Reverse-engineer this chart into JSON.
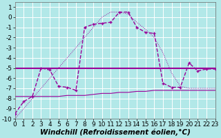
{
  "xlabel": "Windchill (Refroidissement éolien,°C)",
  "x_hours": [
    0,
    1,
    2,
    3,
    4,
    5,
    6,
    7,
    8,
    9,
    10,
    11,
    12,
    13,
    14,
    15,
    16,
    17,
    18,
    19,
    20,
    21,
    22,
    23
  ],
  "line1_y": [
    -9.5,
    -8.3,
    -7.8,
    -5.0,
    -5.2,
    -6.8,
    -6.9,
    -7.2,
    -1.0,
    -0.7,
    -0.6,
    -0.5,
    0.5,
    0.5,
    -1.0,
    -1.5,
    -1.6,
    -6.5,
    -6.9,
    -6.9,
    -4.5,
    -5.3,
    -5.1,
    -5.1
  ],
  "line2_y": [
    -7.8,
    -7.8,
    -7.8,
    -7.8,
    -7.8,
    -7.8,
    -7.7,
    -7.7,
    -7.7,
    -7.6,
    -7.5,
    -7.5,
    -7.4,
    -7.4,
    -7.3,
    -7.3,
    -7.2,
    -7.2,
    -7.2,
    -7.2,
    -7.2,
    -7.2,
    -7.2,
    -7.2
  ],
  "line3_y": [
    -5.0,
    -5.0,
    -5.0,
    -5.0,
    -5.0,
    -5.0,
    -5.0,
    -5.0,
    -5.0,
    -5.0,
    -5.0,
    -5.0,
    -5.0,
    -5.0,
    -5.0,
    -5.0,
    -5.0,
    -5.0,
    -5.0,
    -5.0,
    -5.0,
    -5.0,
    -5.0,
    -5.0
  ],
  "line_diagonal_y": [
    -10.0,
    -9.0,
    -8.0,
    -7.0,
    -6.0,
    -5.0,
    -4.0,
    -3.0,
    -2.0,
    -1.0,
    0.0,
    0.5,
    0.5,
    0.3,
    -0.5,
    -1.2,
    -2.0,
    -3.5,
    -5.5,
    -6.8,
    -7.0,
    -7.0,
    -7.0,
    -7.0
  ],
  "line_color": "#990099",
  "background_color": "#b2e8e8",
  "grid_color": "#ffffff",
  "ylim": [
    -10,
    1.5
  ],
  "xlim": [
    0,
    23
  ],
  "yticks": [
    -10,
    -9,
    -8,
    -7,
    -6,
    -5,
    -4,
    -3,
    -2,
    -1,
    0,
    1
  ],
  "xticks": [
    0,
    1,
    2,
    3,
    4,
    5,
    6,
    7,
    8,
    9,
    10,
    11,
    12,
    13,
    14,
    15,
    16,
    17,
    18,
    19,
    20,
    21,
    22,
    23
  ],
  "xlabel_fontsize": 7.5,
  "tick_fontsize": 6.5
}
